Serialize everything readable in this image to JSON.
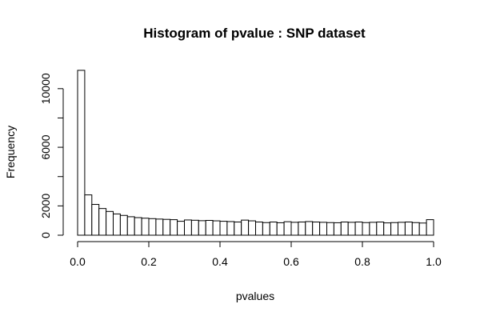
{
  "chart_data": {
    "type": "bar",
    "title": "Histogram of pvalue : SNP dataset",
    "xlabel": "pvalues",
    "ylabel": "Frequency",
    "xlim": [
      0,
      1
    ],
    "ylim": [
      0,
      11300
    ],
    "bin_width": 0.02,
    "x_ticks": [
      0,
      0.2,
      0.4,
      0.6,
      0.8,
      1
    ],
    "x_tick_labels": [
      "0.0",
      "0.2",
      "0.4",
      "0.6",
      "0.8",
      "1.0"
    ],
    "y_ticks": [
      0,
      2000,
      6000,
      10000
    ],
    "y_tick_labels": [
      "0",
      "2000",
      "6000",
      "10000"
    ],
    "bin_starts": [
      0,
      0.02,
      0.04,
      0.06,
      0.08,
      0.1,
      0.12,
      0.14,
      0.16,
      0.18,
      0.2,
      0.22,
      0.24,
      0.26,
      0.28,
      0.3,
      0.32,
      0.34,
      0.36,
      0.38,
      0.4,
      0.42,
      0.44,
      0.46,
      0.48,
      0.5,
      0.52,
      0.54,
      0.56,
      0.58,
      0.6,
      0.62,
      0.64,
      0.66,
      0.68,
      0.7,
      0.72,
      0.74,
      0.76,
      0.78,
      0.8,
      0.82,
      0.84,
      0.86,
      0.88,
      0.9,
      0.92,
      0.94,
      0.96,
      0.98
    ],
    "values": [
      11250,
      2750,
      2100,
      1820,
      1620,
      1450,
      1350,
      1260,
      1200,
      1160,
      1130,
      1100,
      1080,
      1060,
      950,
      1040,
      1020,
      990,
      1010,
      980,
      950,
      930,
      900,
      1030,
      980,
      900,
      860,
      900,
      850,
      920,
      880,
      900,
      930,
      900,
      880,
      860,
      850,
      900,
      880,
      900,
      860,
      880,
      900,
      840,
      860,
      880,
      900,
      860,
      830,
      1060
    ],
    "grid": false,
    "legend": "none"
  }
}
